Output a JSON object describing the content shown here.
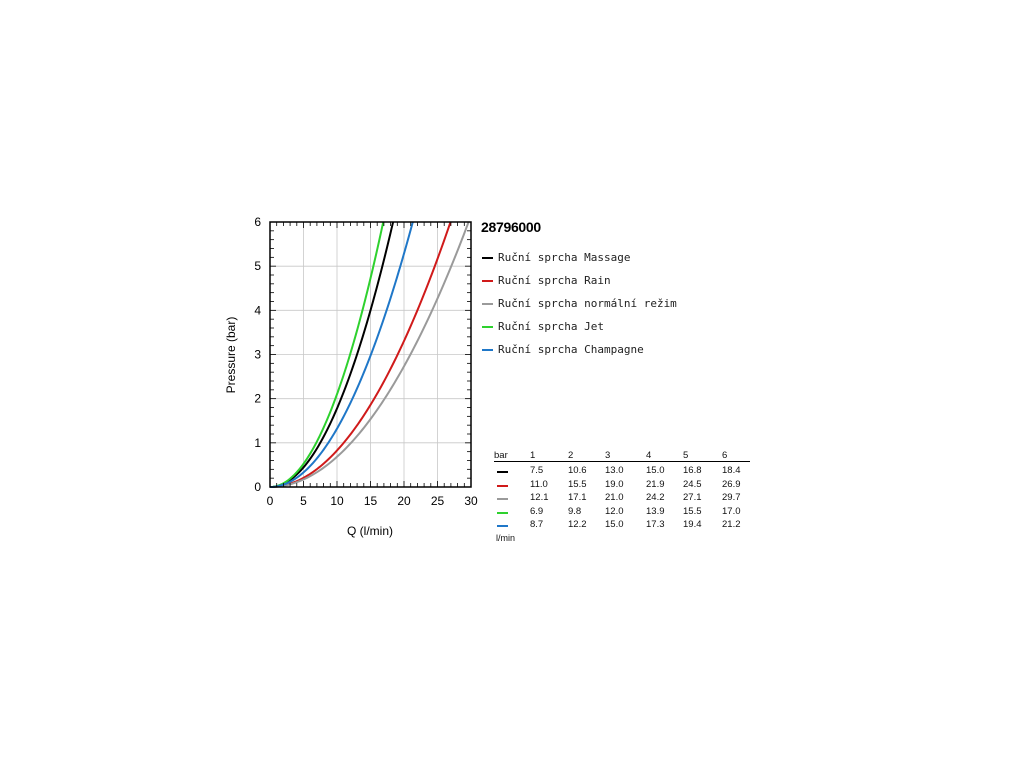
{
  "product_title": "28796000",
  "chart_data": {
    "type": "line",
    "xlabel": "Q (l/min)",
    "ylabel": "Pressure (bar)",
    "xlim": [
      0,
      30
    ],
    "ylim": [
      0,
      6
    ],
    "xticks": [
      "0",
      "5",
      "10",
      "15",
      "20",
      "25",
      "30"
    ],
    "yticks": [
      "0",
      "1",
      "2",
      "3",
      "4",
      "5",
      "6"
    ],
    "grid": true,
    "legend_position": "right",
    "pressure_points": [
      1,
      2,
      3,
      4,
      5,
      6
    ],
    "series": [
      {
        "name": "Ruční sprcha Massage",
        "color": "#000000",
        "flow": [
          7.5,
          10.6,
          13.0,
          15.0,
          16.8,
          18.4
        ]
      },
      {
        "name": "Ruční sprcha Rain",
        "color": "#d01a1a",
        "flow": [
          11.0,
          15.5,
          19.0,
          21.9,
          24.5,
          26.9
        ]
      },
      {
        "name": "Ruční sprcha normální režim",
        "color": "#9a9a9a",
        "flow": [
          12.1,
          17.1,
          21.0,
          24.2,
          27.1,
          29.7
        ]
      },
      {
        "name": "Ruční sprcha Jet",
        "color": "#2ed12e",
        "flow": [
          6.9,
          9.8,
          12.0,
          13.9,
          15.5,
          17.0
        ]
      },
      {
        "name": "Ruční sprcha Champagne",
        "color": "#1f77c8",
        "flow": [
          8.7,
          12.2,
          15.0,
          17.3,
          19.4,
          21.2
        ]
      }
    ]
  },
  "table": {
    "header_label": "bar",
    "columns": [
      "1",
      "2",
      "3",
      "4",
      "5",
      "6"
    ],
    "rows": [
      {
        "color": "#000000",
        "values": [
          "7.5",
          "10.6",
          "13.0",
          "15.0",
          "16.8",
          "18.4"
        ]
      },
      {
        "color": "#d01a1a",
        "values": [
          "11.0",
          "15.5",
          "19.0",
          "21.9",
          "24.5",
          "26.9"
        ]
      },
      {
        "color": "#9a9a9a",
        "values": [
          "12.1",
          "17.1",
          "21.0",
          "24.2",
          "27.1",
          "29.7"
        ]
      },
      {
        "color": "#2ed12e",
        "values": [
          "6.9",
          "9.8",
          "12.0",
          "13.9",
          "15.5",
          "17.0"
        ]
      },
      {
        "color": "#1f77c8",
        "values": [
          "8.7",
          "12.2",
          "15.0",
          "17.3",
          "19.4",
          "21.2"
        ]
      }
    ],
    "unit_label": "l/min"
  }
}
